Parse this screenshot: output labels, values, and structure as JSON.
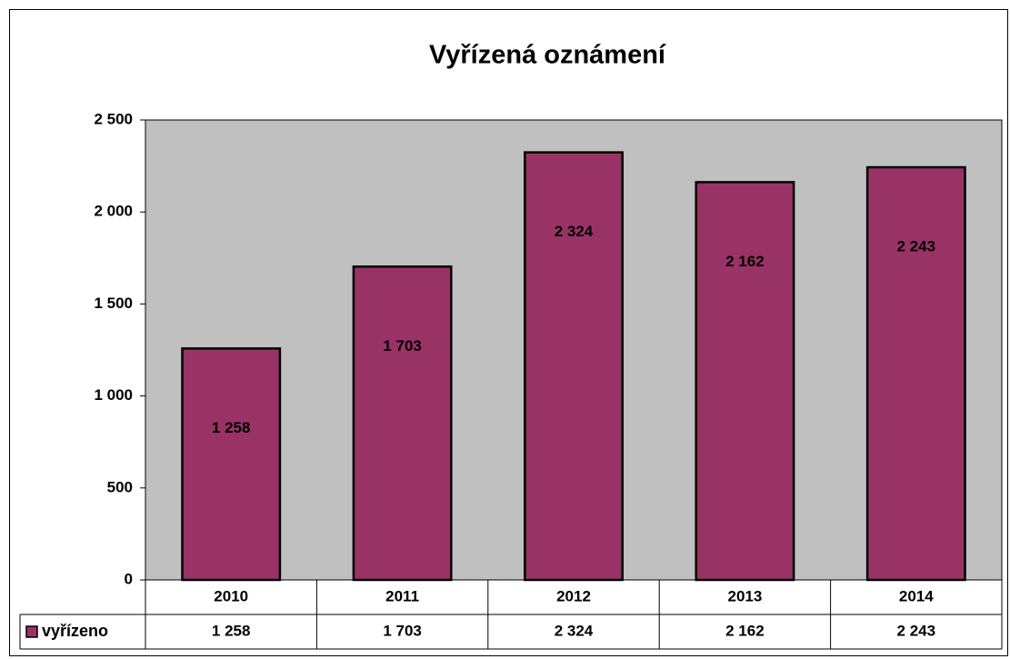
{
  "chart_data": {
    "type": "bar",
    "title": "Vyřízená oznámení",
    "categories": [
      "2010",
      "2011",
      "2012",
      "2013",
      "2014"
    ],
    "series": [
      {
        "name": "vyřízeno",
        "color": "#993366",
        "values": [
          1258,
          1703,
          2324,
          2162,
          2243
        ],
        "value_labels": [
          "1 258",
          "1 703",
          "2 324",
          "2 162",
          "2 243"
        ]
      }
    ],
    "ylim": [
      0,
      2500
    ],
    "yticks": [
      0,
      500,
      {
        "value": 1000,
        "label": "1 000"
      },
      {
        "value": 1500,
        "label": "1 500"
      },
      {
        "value": 2000,
        "label": "2 000"
      },
      {
        "value": 2500,
        "label": "2 500"
      }
    ],
    "plot_color": "#c0c0c0"
  }
}
